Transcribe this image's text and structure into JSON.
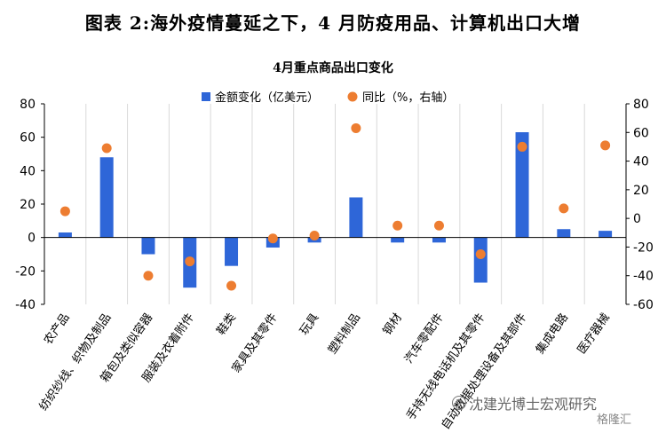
{
  "title": "图表 2:海外疫情蔓延之下，4 月防疫用品、计算机出口大增",
  "subtitle": "4月重点商品出口变化",
  "watermark": "沈建光博士宏观研究",
  "logo_text": "格隆汇",
  "chart_data": {
    "type": "bar",
    "categories": [
      "农产品",
      "纺织纱线、织物及制品",
      "箱包及类似容器",
      "服装及衣着附件",
      "鞋类",
      "家具及其零件",
      "玩具",
      "塑料制品",
      "钢材",
      "汽车零配件",
      "手持无线电话机及其零件",
      "自动数据处理设备及其部件",
      "集成电路",
      "医疗器械"
    ],
    "series": [
      {
        "name": "金额变化（亿美元）",
        "type": "bar",
        "axis": "left",
        "color": "#2e66d8",
        "values": [
          3,
          48,
          -10,
          -30,
          -17,
          -6,
          -3,
          24,
          -3,
          -3,
          -27,
          63,
          5,
          4
        ]
      },
      {
        "name": "同比（%，右轴）",
        "type": "scatter",
        "axis": "right",
        "color": "#ed7d31",
        "values": [
          5,
          49,
          -40,
          -30,
          -47,
          -14,
          -12,
          63,
          -5,
          -5,
          -25,
          50,
          7,
          51
        ]
      }
    ],
    "left_axis": {
      "ylim": [
        -40,
        80
      ],
      "ticks": [
        80,
        60,
        40,
        20,
        0,
        -20,
        -40
      ]
    },
    "right_axis": {
      "ylim": [
        -60,
        80
      ],
      "ticks": [
        80,
        60,
        40,
        20,
        0,
        -20,
        -40,
        -60
      ]
    },
    "legend_position": "top-center"
  }
}
